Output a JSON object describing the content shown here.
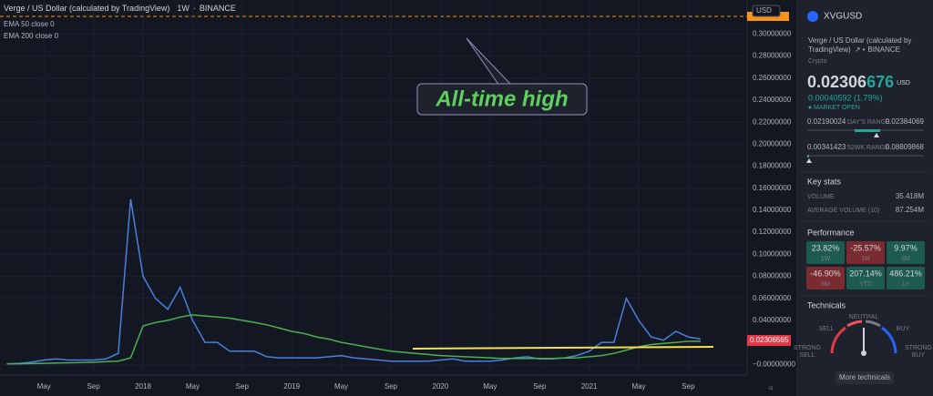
{
  "header": {
    "title": "Verge / US Dollar (calculated by TradingView)",
    "interval": "1W",
    "exchange": "BINANCE",
    "indicators": [
      "EMA 50 close 0",
      "EMA 200 close 0"
    ],
    "currency": "USD"
  },
  "chart_data": {
    "type": "line",
    "annotation": "All-time high",
    "last_price_label": "0.02306565",
    "x": [
      "2017-02",
      "2017-03",
      "2017-04",
      "2017-05",
      "2017-06",
      "2017-07",
      "2017-08",
      "2017-09",
      "2017-10",
      "2017-11",
      "2017-12",
      "2018-01",
      "2018-02",
      "2018-03",
      "2018-04",
      "2018-05",
      "2018-06",
      "2018-07",
      "2018-08",
      "2018-09",
      "2018-10",
      "2018-11",
      "2018-12",
      "2019-01",
      "2019-02",
      "2019-03",
      "2019-04",
      "2019-05",
      "2019-06",
      "2019-07",
      "2019-08",
      "2019-09",
      "2019-10",
      "2019-11",
      "2019-12",
      "2020-01",
      "2020-02",
      "2020-03",
      "2020-04",
      "2020-05",
      "2020-06",
      "2020-07",
      "2020-08",
      "2020-09",
      "2020-10",
      "2020-11",
      "2020-12",
      "2021-01",
      "2021-02",
      "2021-03",
      "2021-04",
      "2021-05",
      "2021-06",
      "2021-07",
      "2021-08",
      "2021-09",
      "2021-10"
    ],
    "series": [
      {
        "color": "#4a7fe0",
        "values": [
          0.0005,
          0.001,
          0.002,
          0.004,
          0.005,
          0.004,
          0.004,
          0.004,
          0.005,
          0.01,
          0.15,
          0.08,
          0.06,
          0.05,
          0.07,
          0.04,
          0.02,
          0.02,
          0.012,
          0.012,
          0.012,
          0.007,
          0.006,
          0.006,
          0.006,
          0.006,
          0.007,
          0.008,
          0.006,
          0.005,
          0.004,
          0.003,
          0.003,
          0.003,
          0.003,
          0.004,
          0.005,
          0.003,
          0.003,
          0.003,
          0.004,
          0.006,
          0.007,
          0.005,
          0.005,
          0.006,
          0.008,
          0.012,
          0.02,
          0.02,
          0.06,
          0.04,
          0.025,
          0.022,
          0.03,
          0.025,
          0.023
        ]
      },
      {
        "name": "EMA 200 close 0",
        "color": "#4caf50",
        "values": [
          0.0005,
          0.0006,
          0.0008,
          0.001,
          0.0013,
          0.0015,
          0.0017,
          0.002,
          0.0025,
          0.003,
          0.006,
          0.035,
          0.038,
          0.04,
          0.043,
          0.045,
          0.044,
          0.043,
          0.042,
          0.04,
          0.038,
          0.036,
          0.033,
          0.03,
          0.028,
          0.025,
          0.023,
          0.02,
          0.018,
          0.016,
          0.014,
          0.012,
          0.011,
          0.01,
          0.009,
          0.008,
          0.0075,
          0.007,
          0.0065,
          0.006,
          0.0055,
          0.0055,
          0.0055,
          0.0055,
          0.0055,
          0.0058,
          0.006,
          0.007,
          0.008,
          0.01,
          0.013,
          0.016,
          0.018,
          0.019,
          0.02,
          0.021,
          0.021
        ]
      }
    ],
    "ylim": [
      -0.008,
      0.316
    ],
    "yticks": [
      {
        "value": 0,
        "label": "−0.00000000"
      },
      {
        "value": 0.04,
        "label": "0.04000000"
      },
      {
        "value": 0.06,
        "label": "0.06000000"
      },
      {
        "value": 0.08,
        "label": "0.08000000"
      },
      {
        "value": 0.1,
        "label": "0.10000000"
      },
      {
        "value": 0.12,
        "label": "0.12000000"
      },
      {
        "value": 0.14,
        "label": "0.14000000"
      },
      {
        "value": 0.16,
        "label": "0.16000000"
      },
      {
        "value": 0.18,
        "label": "0.18000000"
      },
      {
        "value": 0.2,
        "label": "0.20000000"
      },
      {
        "value": 0.22,
        "label": "0.22000000"
      },
      {
        "value": 0.24,
        "label": "0.24000000"
      },
      {
        "value": 0.26,
        "label": "0.26000000"
      },
      {
        "value": 0.28,
        "label": "0.28000000"
      },
      {
        "value": 0.3,
        "label": "0.30000000"
      }
    ],
    "xticks": [
      {
        "value": "2017-05",
        "label": "May"
      },
      {
        "value": "2017-09",
        "label": "Sep"
      },
      {
        "value": "2018-01",
        "label": "2018"
      },
      {
        "value": "2018-05",
        "label": "May"
      },
      {
        "value": "2018-09",
        "label": "Sep"
      },
      {
        "value": "2019-01",
        "label": "2019"
      },
      {
        "value": "2019-05",
        "label": "May"
      },
      {
        "value": "2019-09",
        "label": "Sep"
      },
      {
        "value": "2020-01",
        "label": "2020"
      },
      {
        "value": "2020-05",
        "label": "May"
      },
      {
        "value": "2020-09",
        "label": "Sep"
      },
      {
        "value": "2021-01",
        "label": "2021"
      },
      {
        "value": "2021-05",
        "label": "May"
      },
      {
        "value": "2021-09",
        "label": "Sep"
      }
    ],
    "grid": true
  },
  "sidebar": {
    "symbol": "XVGUSD",
    "name_line1": "Verge / US Dollar (calculated by",
    "name_line2": "TradingView)",
    "exchange": "BINANCE",
    "market": "Crypto",
    "price": [
      "0.02306",
      "676"
    ],
    "currency": "USD",
    "change": "0.00040592 (1.79%)",
    "status": "MARKET OPEN",
    "day_range": {
      "low": "0.02190024",
      "label": "DAY'S RANGE",
      "high": "0.02384069"
    },
    "week52_range": {
      "low": "0.00341423",
      "label": "52WK RANGE",
      "high": "0.08809868"
    },
    "key_stats": {
      "title": "Key stats",
      "rows": [
        [
          "VOLUME",
          "35.418M"
        ],
        [
          "AVERAGE VOLUME (10)",
          "87.254M"
        ]
      ]
    },
    "performance": {
      "title": "Performance",
      "tiles": [
        {
          "value": "23.82%",
          "period": "1W",
          "color": "#1d5a50"
        },
        {
          "value": "-25.57%",
          "period": "1M",
          "color": "#7a2b30"
        },
        {
          "value": "9.97%",
          "period": "3M",
          "color": "#1d5a50"
        },
        {
          "value": "-46.90%",
          "period": "6M",
          "color": "#7a2b30"
        },
        {
          "value": "207.14%",
          "period": "YTD",
          "color": "#1d5a50"
        },
        {
          "value": "486.21%",
          "period": "1Y",
          "color": "#1d5a50"
        }
      ]
    },
    "technicals": {
      "title": "Technicals",
      "neutral": "NEUTRAL",
      "sell": "SELL",
      "buy": "BUY",
      "strong_sell": [
        "STRONG",
        "SELL"
      ],
      "strong_buy": [
        "STRONG",
        "BUY"
      ],
      "button": "More technicals"
    }
  }
}
